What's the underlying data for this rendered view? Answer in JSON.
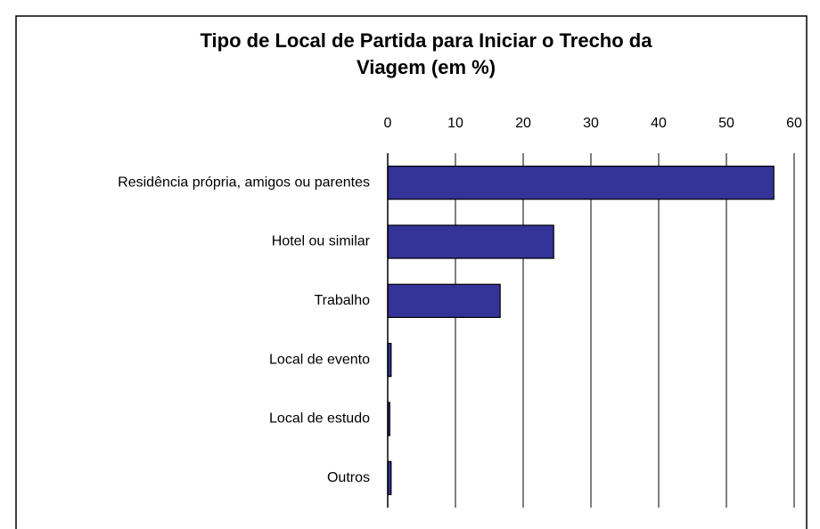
{
  "chart_data": {
    "type": "bar",
    "orientation": "horizontal",
    "title": [
      "Tipo de Local de Partida para Iniciar o Trecho da",
      "Viagem (em %)"
    ],
    "categories": [
      "Residência própria, amigos ou parentes",
      "Hotel ou similar",
      "Trabalho",
      "Local de evento",
      "Local de estudo",
      "Outros"
    ],
    "values": [
      57,
      24.5,
      16.6,
      0.5,
      0.3,
      0.5
    ],
    "color": "#333399",
    "xlim": [
      0,
      60
    ],
    "xticks": [
      0,
      10,
      20,
      30,
      40,
      50,
      60
    ],
    "grid": true
  }
}
